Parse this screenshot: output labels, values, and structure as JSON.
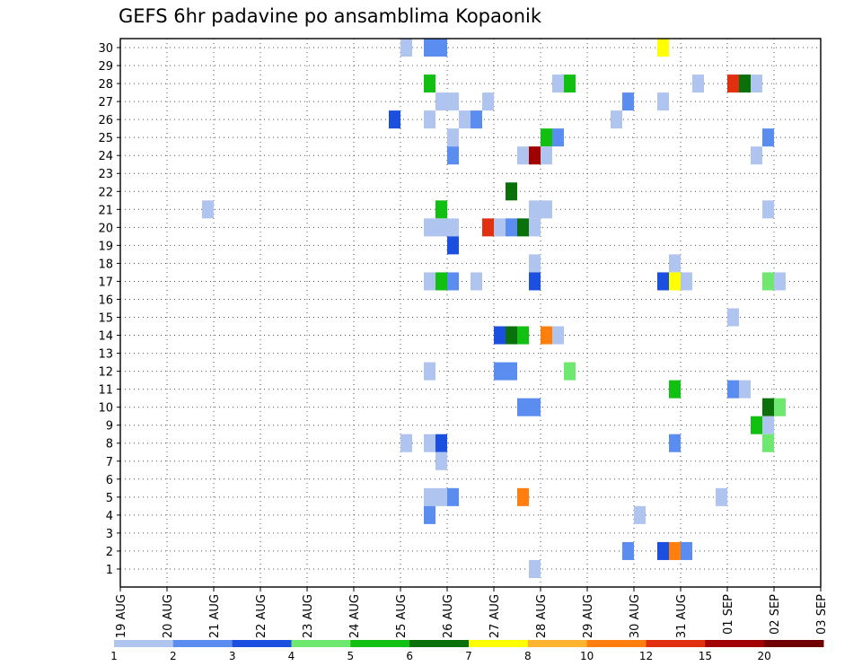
{
  "chart_data": {
    "type": "heatmap",
    "title": "GEFS 6hr padavine po ansamblima Kopaonik",
    "y_ticks": [
      "1",
      "2",
      "3",
      "4",
      "5",
      "6",
      "7",
      "8",
      "9",
      "10",
      "11",
      "12",
      "13",
      "14",
      "15",
      "16",
      "17",
      "18",
      "19",
      "20",
      "21",
      "22",
      "23",
      "24",
      "25",
      "26",
      "27",
      "28",
      "29",
      "30"
    ],
    "x_ticks": [
      "19 AUG",
      "20 AUG",
      "21 AUG",
      "22 AUG",
      "23 AUG",
      "24 AUG",
      "25 AUG",
      "26 AUG",
      "27 AUG",
      "28 AUG",
      "29 AUG",
      "30 AUG",
      "31 AUG",
      "01 SEP",
      "02 SEP",
      "03 SEP"
    ],
    "grid": "dotted",
    "legend_position": "bottom",
    "colorbar": {
      "labels": [
        "1",
        "2",
        "3",
        "4",
        "5",
        "6",
        "7",
        "8",
        "10",
        "12",
        "15",
        "20"
      ],
      "colors": [
        "#b0c4f0",
        "#5b8cf0",
        "#1a4fe0",
        "#6ee86e",
        "#11c011",
        "#0a700a",
        "#ffff00",
        "#ffb430",
        "#ff7f0e",
        "#e03010",
        "#a00000",
        "#700000"
      ]
    },
    "cells": [
      {
        "member": 30,
        "day": 25.125,
        "cls": 1
      },
      {
        "member": 30,
        "day": 25.625,
        "cls": 2
      },
      {
        "member": 30,
        "day": 25.875,
        "cls": 2
      },
      {
        "member": 30,
        "day": 30.625,
        "cls": 7
      },
      {
        "member": 28,
        "day": 25.625,
        "cls": 5
      },
      {
        "member": 28,
        "day": 28.375,
        "cls": 1
      },
      {
        "member": 28,
        "day": 28.625,
        "cls": 5
      },
      {
        "member": 28,
        "day": 31.375,
        "cls": 1
      },
      {
        "member": 28,
        "day": 32.125,
        "cls": 10
      },
      {
        "member": 28,
        "day": 32.375,
        "cls": 6
      },
      {
        "member": 28,
        "day": 32.625,
        "cls": 1
      },
      {
        "member": 27,
        "day": 25.875,
        "cls": 1
      },
      {
        "member": 27,
        "day": 26.125,
        "cls": 1
      },
      {
        "member": 27,
        "day": 26.875,
        "cls": 1
      },
      {
        "member": 27,
        "day": 29.875,
        "cls": 2
      },
      {
        "member": 27,
        "day": 30.625,
        "cls": 1
      },
      {
        "member": 26,
        "day": 24.875,
        "cls": 3
      },
      {
        "member": 26,
        "day": 25.625,
        "cls": 1
      },
      {
        "member": 26,
        "day": 26.375,
        "cls": 1
      },
      {
        "member": 26,
        "day": 26.625,
        "cls": 2
      },
      {
        "member": 26,
        "day": 29.625,
        "cls": 1
      },
      {
        "member": 25,
        "day": 26.125,
        "cls": 1
      },
      {
        "member": 25,
        "day": 28.125,
        "cls": 5
      },
      {
        "member": 25,
        "day": 28.375,
        "cls": 2
      },
      {
        "member": 25,
        "day": 32.875,
        "cls": 2
      },
      {
        "member": 24,
        "day": 26.125,
        "cls": 2
      },
      {
        "member": 24,
        "day": 27.625,
        "cls": 1
      },
      {
        "member": 24,
        "day": 27.875,
        "cls": 11
      },
      {
        "member": 24,
        "day": 28.125,
        "cls": 1
      },
      {
        "member": 24,
        "day": 32.625,
        "cls": 1
      },
      {
        "member": 22,
        "day": 27.375,
        "cls": 6
      },
      {
        "member": 21,
        "day": 20.875,
        "cls": 1
      },
      {
        "member": 21,
        "day": 25.875,
        "cls": 5
      },
      {
        "member": 21,
        "day": 27.875,
        "cls": 1
      },
      {
        "member": 21,
        "day": 28.125,
        "cls": 1
      },
      {
        "member": 21,
        "day": 32.875,
        "cls": 1
      },
      {
        "member": 20,
        "day": 25.625,
        "cls": 1
      },
      {
        "member": 20,
        "day": 25.875,
        "cls": 1
      },
      {
        "member": 20,
        "day": 26.125,
        "cls": 1
      },
      {
        "member": 20,
        "day": 26.875,
        "cls": 10
      },
      {
        "member": 20,
        "day": 27.125,
        "cls": 1
      },
      {
        "member": 20,
        "day": 27.375,
        "cls": 2
      },
      {
        "member": 20,
        "day": 27.625,
        "cls": 6
      },
      {
        "member": 20,
        "day": 27.875,
        "cls": 1
      },
      {
        "member": 19,
        "day": 26.125,
        "cls": 3
      },
      {
        "member": 18,
        "day": 27.875,
        "cls": 1
      },
      {
        "member": 18,
        "day": 30.875,
        "cls": 1
      },
      {
        "member": 17,
        "day": 25.625,
        "cls": 1
      },
      {
        "member": 17,
        "day": 25.875,
        "cls": 5
      },
      {
        "member": 17,
        "day": 26.125,
        "cls": 2
      },
      {
        "member": 17,
        "day": 26.625,
        "cls": 1
      },
      {
        "member": 17,
        "day": 27.875,
        "cls": 3
      },
      {
        "member": 17,
        "day": 30.625,
        "cls": 3
      },
      {
        "member": 17,
        "day": 30.875,
        "cls": 7
      },
      {
        "member": 17,
        "day": 31.125,
        "cls": 1
      },
      {
        "member": 17,
        "day": 32.875,
        "cls": 4
      },
      {
        "member": 17,
        "day": 33.125,
        "cls": 1
      },
      {
        "member": 15,
        "day": 32.125,
        "cls": 1
      },
      {
        "member": 14,
        "day": 27.125,
        "cls": 3
      },
      {
        "member": 14,
        "day": 27.375,
        "cls": 6
      },
      {
        "member": 14,
        "day": 27.625,
        "cls": 5
      },
      {
        "member": 14,
        "day": 28.125,
        "cls": 9
      },
      {
        "member": 14,
        "day": 28.375,
        "cls": 1
      },
      {
        "member": 12,
        "day": 25.625,
        "cls": 1
      },
      {
        "member": 12,
        "day": 27.125,
        "cls": 2
      },
      {
        "member": 12,
        "day": 27.375,
        "cls": 2
      },
      {
        "member": 12,
        "day": 28.625,
        "cls": 4
      },
      {
        "member": 11,
        "day": 30.875,
        "cls": 5
      },
      {
        "member": 11,
        "day": 32.125,
        "cls": 2
      },
      {
        "member": 11,
        "day": 32.375,
        "cls": 1
      },
      {
        "member": 10,
        "day": 27.625,
        "cls": 2
      },
      {
        "member": 10,
        "day": 27.875,
        "cls": 2
      },
      {
        "member": 10,
        "day": 32.875,
        "cls": 6
      },
      {
        "member": 10,
        "day": 33.125,
        "cls": 4
      },
      {
        "member": 9,
        "day": 32.625,
        "cls": 5
      },
      {
        "member": 9,
        "day": 32.875,
        "cls": 1
      },
      {
        "member": 8,
        "day": 25.125,
        "cls": 1
      },
      {
        "member": 8,
        "day": 25.625,
        "cls": 1
      },
      {
        "member": 8,
        "day": 25.875,
        "cls": 3
      },
      {
        "member": 8,
        "day": 30.875,
        "cls": 2
      },
      {
        "member": 8,
        "day": 32.875,
        "cls": 4
      },
      {
        "member": 7,
        "day": 25.875,
        "cls": 1
      },
      {
        "member": 5,
        "day": 25.625,
        "cls": 1
      },
      {
        "member": 5,
        "day": 25.875,
        "cls": 1
      },
      {
        "member": 5,
        "day": 26.125,
        "cls": 2
      },
      {
        "member": 5,
        "day": 27.625,
        "cls": 9
      },
      {
        "member": 5,
        "day": 31.875,
        "cls": 1
      },
      {
        "member": 4,
        "day": 25.625,
        "cls": 2
      },
      {
        "member": 4,
        "day": 30.125,
        "cls": 1
      },
      {
        "member": 2,
        "day": 29.875,
        "cls": 2
      },
      {
        "member": 2,
        "day": 30.625,
        "cls": 3
      },
      {
        "member": 2,
        "day": 30.875,
        "cls": 9
      },
      {
        "member": 2,
        "day": 31.125,
        "cls": 2
      },
      {
        "member": 1,
        "day": 27.875,
        "cls": 1
      }
    ]
  }
}
